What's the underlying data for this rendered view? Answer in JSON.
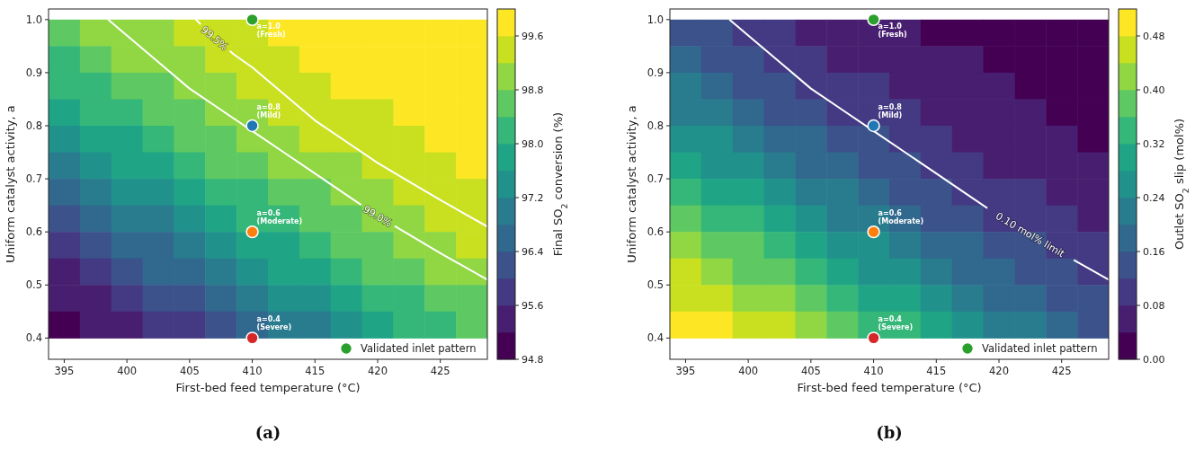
{
  "chart_data": [
    {
      "type": "heatmap",
      "title": "(a)",
      "xlabel": "First-bed feed temperature (°C)",
      "ylabel": "Uniform catalyst activity, a",
      "clabel": "Final SO$_{2}$ conversion (%)",
      "x": [
        395,
        397.5,
        400,
        402.5,
        405,
        407.5,
        410,
        412.5,
        415,
        417.5,
        420,
        422.5,
        425,
        427.5
      ],
      "y": [
        0.975,
        0.925,
        0.875,
        0.825,
        0.775,
        0.725,
        0.675,
        0.625,
        0.575,
        0.525,
        0.475,
        0.425
      ],
      "cells": [
        [
          98.6,
          98.8,
          99.0,
          99.1,
          99.3,
          99.4,
          99.5,
          99.6,
          99.7,
          99.7,
          99.8,
          99.8,
          99.9,
          99.9
        ],
        [
          98.3,
          98.6,
          98.8,
          98.9,
          99.1,
          99.3,
          99.4,
          99.5,
          99.6,
          99.6,
          99.7,
          99.8,
          99.8,
          99.9
        ],
        [
          98.0,
          98.3,
          98.5,
          98.7,
          98.9,
          99.1,
          99.2,
          99.3,
          99.5,
          99.6,
          99.6,
          99.7,
          99.8,
          99.8
        ],
        [
          97.7,
          98.0,
          98.2,
          98.5,
          98.7,
          98.9,
          99.0,
          99.2,
          99.3,
          99.4,
          99.5,
          99.6,
          99.7,
          99.7
        ],
        [
          97.3,
          97.6,
          97.9,
          98.2,
          98.4,
          98.6,
          98.8,
          99.0,
          99.2,
          99.3,
          99.4,
          99.5,
          99.6,
          99.7
        ],
        [
          97.0,
          97.3,
          97.6,
          97.8,
          98.1,
          98.4,
          98.6,
          98.8,
          99.0,
          99.1,
          99.3,
          99.4,
          99.5,
          99.6
        ],
        [
          96.6,
          96.9,
          97.2,
          97.5,
          97.8,
          98.0,
          98.3,
          98.5,
          98.7,
          98.9,
          99.1,
          99.2,
          99.4,
          99.5
        ],
        [
          96.2,
          96.5,
          96.8,
          97.1,
          97.4,
          97.7,
          98.0,
          98.2,
          98.5,
          98.7,
          98.9,
          99.0,
          99.2,
          99.3
        ],
        [
          95.8,
          96.1,
          96.4,
          96.7,
          97.0,
          97.3,
          97.6,
          97.9,
          98.2,
          98.4,
          98.6,
          98.8,
          99.0,
          99.2
        ],
        [
          95.5,
          95.8,
          96.1,
          96.4,
          96.7,
          97.0,
          97.3,
          97.6,
          97.9,
          98.1,
          98.4,
          98.6,
          98.8,
          99.0
        ],
        [
          95.3,
          95.5,
          95.7,
          96.0,
          96.3,
          96.6,
          96.9,
          97.2,
          97.5,
          97.8,
          98.1,
          98.3,
          98.5,
          98.7
        ],
        [
          95.1,
          95.2,
          95.4,
          95.6,
          95.9,
          96.2,
          96.5,
          96.8,
          97.1,
          97.4,
          97.7,
          98.0,
          98.2,
          98.5
        ]
      ],
      "clim": [
        94.8,
        100.0
      ],
      "cticks": [
        {
          "value": 94.8,
          "label": "94.8"
        },
        {
          "value": 95.6,
          "label": "95.6"
        },
        {
          "value": 96.4,
          "label": "96.4"
        },
        {
          "value": 97.2,
          "label": "97.2"
        },
        {
          "value": 98.0,
          "label": "98.0"
        },
        {
          "value": 98.8,
          "label": "98.8"
        },
        {
          "value": 99.6,
          "label": "99.6"
        }
      ],
      "xlim": [
        393.75,
        428.75
      ],
      "ylim": [
        0.36,
        1.02
      ],
      "xticks": [
        395,
        400,
        405,
        410,
        415,
        420,
        425
      ],
      "yticks": [
        0.4,
        0.5,
        0.6,
        0.7,
        0.8,
        0.9,
        {
          "value": 1,
          "label": "1.0"
        }
      ],
      "series": [
        {
          "type": "line",
          "color": "#ffffff",
          "x": [
            405.5,
            407,
            408.5,
            410,
            412.5,
            415,
            417.5,
            420,
            422.5,
            425,
            428.75
          ],
          "values": [
            1.0,
            0.965,
            0.935,
            0.91,
            0.86,
            0.81,
            0.77,
            0.73,
            0.695,
            0.66,
            0.61
          ]
        },
        {
          "type": "line",
          "color": "#ffffff",
          "x": [
            398.5,
            400,
            402.5,
            405,
            407.5,
            410,
            412.5,
            415,
            417.5,
            420,
            422.5,
            425,
            428.75
          ],
          "values": [
            1.0,
            0.97,
            0.92,
            0.87,
            0.83,
            0.79,
            0.75,
            0.71,
            0.67,
            0.63,
            0.595,
            0.56,
            0.51
          ]
        },
        {
          "type": "scatter",
          "name": "Validated inlet pattern",
          "color": "#2ca02c",
          "marker": "circle",
          "x": [
            410,
            410,
            410,
            410
          ],
          "values": [
            1.0,
            0.8,
            0.6,
            0.4
          ],
          "colors": [
            "#2ca02c",
            "#1f77b4",
            "#ff7f0e",
            "#d62728"
          ]
        }
      ],
      "legend": "bottom right",
      "annotations": [
        {
          "text": "99.5%",
          "x": 407,
          "y": 0.965
        },
        {
          "text": "99.0%",
          "x": 420,
          "y": 0.63
        },
        {
          "text": "a=1.0\n(Fresh)",
          "x": 410,
          "y": 1.0
        },
        {
          "text": "a=0.8\n(Mild)",
          "x": 410,
          "y": 0.8
        },
        {
          "text": "a=0.6\n(Moderate)",
          "x": 410,
          "y": 0.6
        },
        {
          "text": "a=0.4\n(Severe)",
          "x": 410,
          "y": 0.4
        }
      ]
    },
    {
      "type": "heatmap",
      "title": "(b)",
      "xlabel": "First-bed feed temperature (°C)",
      "ylabel": "Uniform catalyst activity, a",
      "clabel": "Outlet SO$_{2}$ slip (mol%)",
      "x": [
        395,
        397.5,
        400,
        402.5,
        405,
        407.5,
        410,
        412.5,
        415,
        417.5,
        420,
        422.5,
        425,
        427.5
      ],
      "y": [
        0.975,
        0.925,
        0.875,
        0.825,
        0.775,
        0.725,
        0.675,
        0.625,
        0.575,
        0.525,
        0.475,
        0.425
      ],
      "cells": [
        [
          0.14,
          0.12,
          0.1,
          0.09,
          0.07,
          0.06,
          0.05,
          0.04,
          0.03,
          0.03,
          0.02,
          0.02,
          0.01,
          0.01
        ],
        [
          0.17,
          0.14,
          0.12,
          0.11,
          0.09,
          0.07,
          0.06,
          0.05,
          0.04,
          0.04,
          0.03,
          0.02,
          0.02,
          0.01
        ],
        [
          0.2,
          0.17,
          0.15,
          0.13,
          0.11,
          0.09,
          0.08,
          0.07,
          0.05,
          0.04,
          0.04,
          0.03,
          0.02,
          0.02
        ],
        [
          0.23,
          0.2,
          0.18,
          0.15,
          0.13,
          0.11,
          0.1,
          0.08,
          0.07,
          0.06,
          0.05,
          0.04,
          0.03,
          0.03
        ],
        [
          0.27,
          0.24,
          0.21,
          0.18,
          0.16,
          0.14,
          0.12,
          0.1,
          0.08,
          0.07,
          0.06,
          0.05,
          0.04,
          0.03
        ],
        [
          0.3,
          0.27,
          0.24,
          0.22,
          0.19,
          0.16,
          0.14,
          0.12,
          0.1,
          0.09,
          0.07,
          0.06,
          0.05,
          0.04
        ],
        [
          0.34,
          0.31,
          0.28,
          0.25,
          0.22,
          0.2,
          0.17,
          0.15,
          0.13,
          0.11,
          0.09,
          0.08,
          0.06,
          0.05
        ],
        [
          0.38,
          0.35,
          0.32,
          0.29,
          0.26,
          0.23,
          0.2,
          0.18,
          0.15,
          0.13,
          0.11,
          0.1,
          0.08,
          0.07
        ],
        [
          0.42,
          0.39,
          0.36,
          0.33,
          0.3,
          0.27,
          0.24,
          0.21,
          0.18,
          0.16,
          0.14,
          0.12,
          0.1,
          0.08
        ],
        [
          0.45,
          0.42,
          0.39,
          0.36,
          0.33,
          0.3,
          0.27,
          0.24,
          0.21,
          0.19,
          0.16,
          0.14,
          0.12,
          0.1
        ],
        [
          0.47,
          0.45,
          0.43,
          0.4,
          0.37,
          0.34,
          0.31,
          0.28,
          0.25,
          0.22,
          0.19,
          0.17,
          0.15,
          0.13
        ],
        [
          0.49,
          0.48,
          0.46,
          0.44,
          0.41,
          0.38,
          0.35,
          0.32,
          0.29,
          0.26,
          0.23,
          0.2,
          0.18,
          0.15
        ]
      ],
      "clim": [
        0,
        0.52
      ],
      "cticks": [
        {
          "value": 0,
          "label": "0.00"
        },
        {
          "value": 0.08,
          "label": "0.08"
        },
        {
          "value": 0.16,
          "label": "0.16"
        },
        {
          "value": 0.24,
          "label": "0.24"
        },
        {
          "value": 0.32,
          "label": "0.32"
        },
        {
          "value": 0.4,
          "label": "0.40"
        },
        {
          "value": 0.48,
          "label": "0.48"
        }
      ],
      "xlim": [
        393.75,
        428.75
      ],
      "ylim": [
        0.36,
        1.02
      ],
      "xticks": [
        395,
        400,
        405,
        410,
        415,
        420,
        425
      ],
      "yticks": [
        0.4,
        0.5,
        0.6,
        0.7,
        0.8,
        0.9,
        {
          "value": 1,
          "label": "1.0"
        }
      ],
      "series": [
        {
          "type": "line",
          "color": "#ffffff",
          "x": [
            398.5,
            400,
            402.5,
            405,
            407.5,
            410,
            412.5,
            415,
            417.5,
            420,
            422.5,
            425,
            428.75
          ],
          "values": [
            1.0,
            0.97,
            0.92,
            0.87,
            0.83,
            0.79,
            0.75,
            0.71,
            0.67,
            0.63,
            0.595,
            0.56,
            0.51
          ]
        },
        {
          "type": "scatter",
          "name": "Validated inlet pattern",
          "color": "#2ca02c",
          "marker": "circle",
          "x": [
            410,
            410,
            410,
            410
          ],
          "values": [
            1.0,
            0.8,
            0.6,
            0.4
          ],
          "colors": [
            "#2ca02c",
            "#1f77b4",
            "#ff7f0e",
            "#d62728"
          ]
        }
      ],
      "legend": "bottom right",
      "annotations": [
        {
          "text": "0.10 mol% limit",
          "x": 422.5,
          "y": 0.595
        },
        {
          "text": "a=1.0\n(Fresh)",
          "x": 410,
          "y": 1.0
        },
        {
          "text": "a=0.8\n(Mild)",
          "x": 410,
          "y": 0.8
        },
        {
          "text": "a=0.6\n(Moderate)",
          "x": 410,
          "y": 0.6
        },
        {
          "text": "a=0.4\n(Severe)",
          "x": 410,
          "y": 0.4
        }
      ]
    }
  ]
}
